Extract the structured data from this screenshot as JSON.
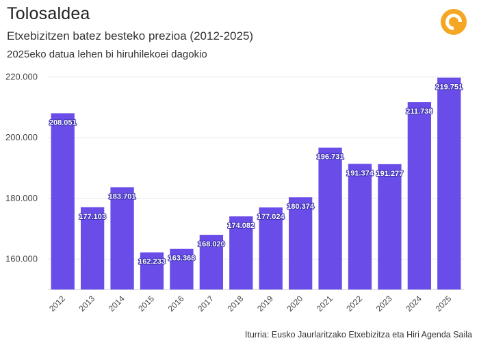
{
  "header": {
    "title": "Tolosaldea",
    "subtitle": "Etxebizitzen batez besteko prezioa (2012-2025)",
    "note": "2025eko datua lehen bi hiruhilekoei dagokio"
  },
  "footer": {
    "source": "Iturria: Eusko Jaurlaritzako Etxebizitza eta Hiri Agenda Saila"
  },
  "logo": {
    "icon": "orange-ring-logo-icon",
    "color": "#f5a623"
  },
  "colors": {
    "bar": "#6a4de8",
    "grid": "#e6e6e6",
    "axis": "#cccccc"
  },
  "chart_data": {
    "type": "bar",
    "title": "Etxebizitzen batez besteko prezioa (2012-2025)",
    "xlabel": "",
    "ylabel": "",
    "ylim": [
      150000,
      221000
    ],
    "yticks": [
      160000,
      180000,
      200000,
      220000
    ],
    "ytick_labels": [
      "160.000",
      "180.000",
      "200.000",
      "220.000"
    ],
    "grid": true,
    "categories": [
      "2012",
      "2013",
      "2014",
      "2015",
      "2016",
      "2017",
      "2018",
      "2019",
      "2020",
      "2021",
      "2022",
      "2023",
      "2024",
      "2025"
    ],
    "values": [
      208051,
      177103,
      183701,
      162233,
      163368,
      168020,
      174082,
      177024,
      180374,
      196731,
      191374,
      191277,
      211738,
      219751
    ],
    "value_labels": [
      "208.051",
      "177.103",
      "183.701",
      "162.233",
      "163.368",
      "168.020",
      "174.082",
      "177.024",
      "180.374",
      "196.731",
      "191.374",
      "191.277",
      "211.738",
      "219.751"
    ]
  }
}
